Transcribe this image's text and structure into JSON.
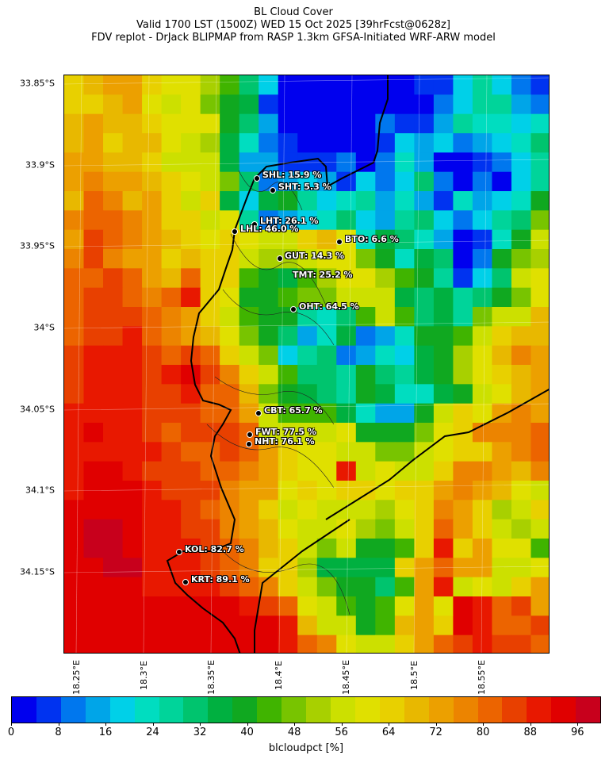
{
  "title": {
    "line1": "BL Cloud Cover",
    "line2": "Valid 1700 LST (1500Z) WED 15 Oct 2025 [39hrFcst@0628z]",
    "line3": "FDV replot - DrJack BLIPMAP from RASP 1.3km GFSA-Initiated WRF-ARW model"
  },
  "lat_labels": [
    "33.85°S",
    "33.9°S",
    "33.95°S",
    "34°S",
    "34.05°S",
    "34.1°S",
    "34.15°S"
  ],
  "lon_labels": [
    "18.25°E",
    "18.3°E",
    "18.35°E",
    "18.4°E",
    "18.45°E",
    "18.5°E",
    "18.55°E"
  ],
  "colorbar": {
    "label": "blcloudpct [%]",
    "ticks": [
      "0",
      "8",
      "16",
      "24",
      "32",
      "40",
      "48",
      "56",
      "64",
      "72",
      "80",
      "88",
      "96"
    ],
    "min": 0,
    "max": 100,
    "colors": [
      "#0000ee",
      "#0033f0",
      "#0077ee",
      "#00a5e8",
      "#00d0e8",
      "#00ddc0",
      "#00d49a",
      "#00c46e",
      "#00b040",
      "#10a820",
      "#40b400",
      "#78c400",
      "#a8d000",
      "#cce000",
      "#e0e000",
      "#e8d000",
      "#e8b800",
      "#eca000",
      "#ec8400",
      "#ec6400",
      "#e84000",
      "#e81800",
      "#e00000",
      "#c8001c"
    ]
  },
  "sites": [
    {
      "code": "SHL",
      "label": "SHL: 15.9 %",
      "value": 15.9
    },
    {
      "code": "SHT",
      "label": "SHT: 5.3 %",
      "value": 5.3
    },
    {
      "code": "LHT",
      "label": "LHT: 26.1 %",
      "value": 26.1
    },
    {
      "code": "LHL",
      "label": "LHL: 46.0 %",
      "value": 46.0
    },
    {
      "code": "BTO",
      "label": "BTO: 6.6 %",
      "value": 6.6
    },
    {
      "code": "GUT",
      "label": "GUT: 14.3 %",
      "value": 14.3
    },
    {
      "code": "TMT",
      "label": "TMT: 25.2 %",
      "value": 25.2
    },
    {
      "code": "OHT",
      "label": "OHT: 64.5 %",
      "value": 64.5
    },
    {
      "code": "CBT",
      "label": "CBT: 65.7 %",
      "value": 65.7
    },
    {
      "code": "FWT",
      "label": "FWT: 77.5 %",
      "value": 77.5
    },
    {
      "code": "NHT",
      "label": "NHT: 76.1 %",
      "value": 76.1
    },
    {
      "code": "KOL",
      "label": "KOL: 82.7 %",
      "value": 82.7
    },
    {
      "code": "KRT",
      "label": "KRT: 89.1 %",
      "value": 89.1
    }
  ],
  "grid_values": [
    [
      64,
      68,
      72,
      72,
      64,
      60,
      60,
      52,
      44,
      32,
      20,
      4,
      4,
      4,
      4,
      4,
      4,
      4,
      8,
      8,
      20,
      28,
      20,
      12,
      8
    ],
    [
      64,
      64,
      68,
      72,
      60,
      56,
      60,
      48,
      40,
      36,
      8,
      4,
      4,
      4,
      4,
      4,
      4,
      4,
      4,
      12,
      20,
      28,
      28,
      16,
      12
    ],
    [
      68,
      72,
      68,
      68,
      64,
      60,
      60,
      60,
      40,
      32,
      16,
      4,
      4,
      4,
      4,
      4,
      12,
      8,
      8,
      16,
      28,
      24,
      24,
      20,
      24
    ],
    [
      68,
      72,
      64,
      68,
      68,
      60,
      56,
      52,
      36,
      24,
      12,
      8,
      4,
      4,
      4,
      4,
      8,
      20,
      16,
      20,
      12,
      16,
      20,
      24,
      32
    ],
    [
      72,
      72,
      68,
      68,
      64,
      56,
      56,
      56,
      36,
      16,
      16,
      8,
      8,
      8,
      12,
      4,
      12,
      24,
      16,
      4,
      4,
      8,
      12,
      20,
      28
    ],
    [
      72,
      76,
      72,
      72,
      68,
      64,
      60,
      56,
      48,
      32,
      12,
      16,
      20,
      16,
      8,
      20,
      12,
      20,
      32,
      12,
      4,
      12,
      4,
      20,
      28
    ],
    [
      68,
      80,
      76,
      68,
      72,
      64,
      56,
      64,
      36,
      20,
      36,
      40,
      28,
      20,
      24,
      28,
      16,
      24,
      16,
      8,
      24,
      16,
      20,
      24,
      40
    ],
    [
      76,
      80,
      80,
      76,
      72,
      64,
      64,
      56,
      60,
      28,
      12,
      16,
      20,
      24,
      32,
      20,
      16,
      28,
      32,
      20,
      12,
      20,
      28,
      32,
      48
    ],
    [
      72,
      84,
      80,
      76,
      72,
      68,
      64,
      60,
      64,
      60,
      56,
      56,
      64,
      68,
      60,
      24,
      36,
      32,
      24,
      16,
      4,
      8,
      24,
      40,
      56
    ],
    [
      76,
      84,
      76,
      72,
      72,
      64,
      68,
      64,
      64,
      56,
      52,
      52,
      56,
      60,
      60,
      48,
      40,
      24,
      36,
      32,
      4,
      12,
      40,
      48,
      52
    ],
    [
      80,
      80,
      84,
      80,
      72,
      68,
      80,
      64,
      64,
      44,
      40,
      36,
      44,
      52,
      60,
      60,
      52,
      44,
      40,
      28,
      8,
      20,
      32,
      56,
      60
    ],
    [
      80,
      84,
      84,
      80,
      76,
      80,
      88,
      64,
      60,
      40,
      40,
      44,
      48,
      48,
      56,
      56,
      56,
      36,
      32,
      36,
      28,
      32,
      40,
      48,
      60
    ],
    [
      80,
      84,
      84,
      84,
      80,
      76,
      72,
      64,
      56,
      44,
      40,
      40,
      28,
      24,
      32,
      44,
      56,
      44,
      32,
      36,
      28,
      48,
      56,
      56,
      68
    ],
    [
      80,
      84,
      84,
      88,
      80,
      76,
      72,
      68,
      60,
      48,
      40,
      32,
      16,
      24,
      36,
      12,
      16,
      24,
      40,
      40,
      44,
      56,
      64,
      68,
      68
    ],
    [
      84,
      88,
      88,
      88,
      84,
      80,
      84,
      80,
      64,
      56,
      48,
      20,
      28,
      32,
      12,
      16,
      24,
      20,
      36,
      40,
      52,
      60,
      68,
      76,
      72
    ],
    [
      84,
      88,
      88,
      88,
      84,
      88,
      92,
      84,
      76,
      64,
      56,
      44,
      32,
      32,
      28,
      40,
      32,
      28,
      36,
      40,
      52,
      60,
      64,
      68,
      72
    ],
    [
      84,
      88,
      88,
      88,
      84,
      84,
      88,
      80,
      80,
      68,
      48,
      40,
      36,
      32,
      28,
      40,
      36,
      24,
      24,
      36,
      40,
      56,
      60,
      68,
      72
    ],
    [
      88,
      88,
      88,
      88,
      84,
      84,
      84,
      80,
      80,
      72,
      56,
      44,
      44,
      44,
      36,
      24,
      16,
      16,
      40,
      56,
      64,
      60,
      72,
      76,
      72
    ],
    [
      88,
      92,
      88,
      88,
      84,
      80,
      84,
      84,
      84,
      80,
      56,
      56,
      56,
      56,
      60,
      40,
      40,
      40,
      48,
      60,
      64,
      76,
      76,
      76,
      80
    ],
    [
      88,
      88,
      88,
      88,
      88,
      84,
      80,
      80,
      84,
      80,
      72,
      64,
      60,
      60,
      56,
      56,
      48,
      48,
      56,
      60,
      64,
      64,
      72,
      76,
      80
    ],
    [
      88,
      92,
      92,
      88,
      84,
      84,
      84,
      80,
      80,
      76,
      72,
      64,
      60,
      60,
      88,
      56,
      60,
      56,
      56,
      64,
      76,
      76,
      72,
      68,
      76
    ],
    [
      88,
      92,
      92,
      92,
      88,
      84,
      84,
      84,
      76,
      72,
      72,
      60,
      64,
      60,
      64,
      64,
      60,
      64,
      64,
      72,
      76,
      72,
      68,
      60,
      56
    ],
    [
      92,
      92,
      92,
      92,
      88,
      88,
      84,
      80,
      76,
      72,
      64,
      56,
      60,
      56,
      56,
      56,
      52,
      60,
      64,
      76,
      72,
      64,
      52,
      56,
      64
    ],
    [
      92,
      96,
      96,
      92,
      88,
      88,
      84,
      84,
      76,
      72,
      68,
      60,
      56,
      56,
      60,
      52,
      48,
      56,
      64,
      80,
      72,
      64,
      56,
      52,
      56
    ],
    [
      92,
      96,
      96,
      92,
      88,
      88,
      88,
      84,
      80,
      76,
      68,
      64,
      56,
      48,
      56,
      40,
      40,
      44,
      64,
      88,
      64,
      72,
      60,
      60,
      44
    ],
    [
      92,
      92,
      96,
      96,
      88,
      88,
      88,
      84,
      80,
      76,
      64,
      64,
      52,
      36,
      36,
      36,
      36,
      64,
      72,
      80,
      72,
      72,
      56,
      56,
      60
    ],
    [
      92,
      92,
      92,
      92,
      88,
      88,
      88,
      88,
      84,
      80,
      76,
      64,
      56,
      48,
      40,
      40,
      32,
      44,
      72,
      88,
      56,
      60,
      56,
      64,
      72
    ],
    [
      92,
      92,
      92,
      92,
      92,
      92,
      92,
      92,
      92,
      88,
      84,
      80,
      60,
      56,
      44,
      40,
      44,
      60,
      72,
      60,
      92,
      88,
      80,
      84,
      72
    ],
    [
      92,
      92,
      92,
      92,
      92,
      92,
      92,
      92,
      92,
      92,
      92,
      88,
      68,
      56,
      56,
      40,
      44,
      68,
      72,
      64,
      92,
      88,
      80,
      80,
      84
    ],
    [
      92,
      92,
      92,
      92,
      92,
      92,
      92,
      92,
      92,
      92,
      92,
      88,
      80,
      76,
      60,
      56,
      56,
      64,
      72,
      80,
      84,
      88,
      84,
      84,
      80
    ]
  ]
}
